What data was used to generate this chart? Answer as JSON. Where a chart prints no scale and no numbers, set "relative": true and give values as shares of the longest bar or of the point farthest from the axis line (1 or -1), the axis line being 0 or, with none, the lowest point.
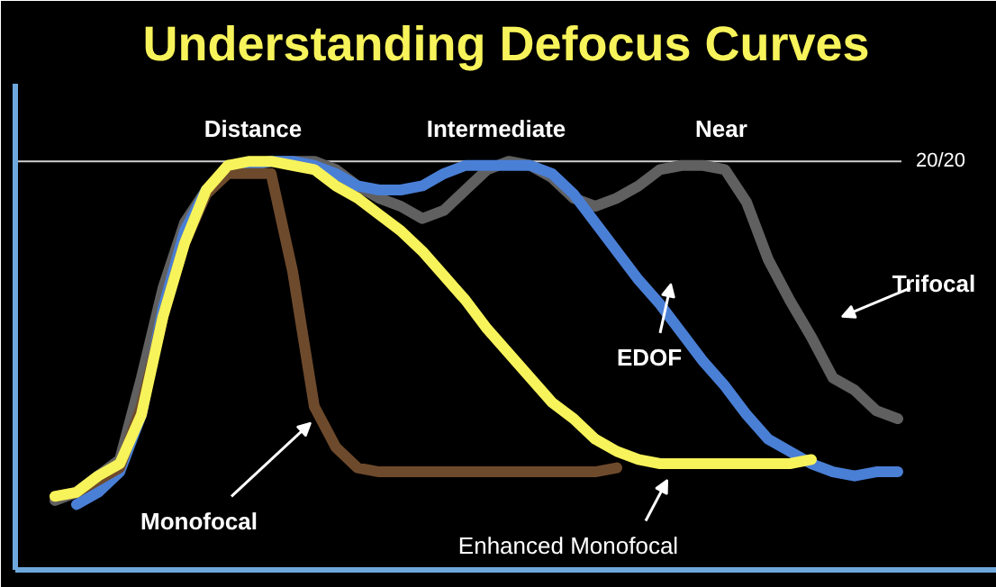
{
  "chart_data": {
    "type": "line",
    "title": "Understanding Defocus Curves",
    "relative": true,
    "legend": false,
    "grid": false,
    "marker": "none",
    "line_style": "solid",
    "categories": [
      null,
      null,
      null,
      null,
      null,
      null,
      null,
      null,
      null,
      null,
      null,
      null,
      null,
      null,
      null,
      null,
      null,
      null,
      null,
      null,
      null,
      null,
      null,
      null,
      null,
      null,
      null,
      null,
      null,
      null,
      null,
      null,
      null,
      null,
      null,
      null,
      null,
      null,
      null,
      null
    ],
    "annotations": [
      "Distance",
      "Intermediate",
      "Near",
      "20/20"
    ],
    "ref_lines": [
      {
        "axis": "y",
        "value": 1,
        "color": "#d0d0d0"
      }
    ],
    "series": [
      {
        "name": "Trifocal",
        "color": "#606060",
        "values": [
          0.17,
          0.19,
          0.23,
          0.27,
          0.47,
          0.69,
          0.85,
          0.93,
          0.97,
          0.99,
          1,
          1,
          1,
          0.98,
          0.94,
          0.91,
          0.89,
          0.86,
          0.88,
          0.93,
          0.98,
          1,
          0.99,
          0.96,
          0.91,
          0.89,
          0.91,
          0.94,
          0.98,
          0.99,
          0.99,
          0.98,
          0.9,
          0.76,
          0.66,
          0.57,
          0.47,
          0.44,
          0.39,
          0.37
        ]
      },
      {
        "name": "EDOF",
        "color": "#4a7fd6",
        "values": [
          null,
          0.16,
          0.19,
          0.24,
          0.38,
          0.64,
          0.83,
          0.93,
          0.98,
          0.99,
          1,
          1,
          0.99,
          0.97,
          0.94,
          0.93,
          0.93,
          0.94,
          0.97,
          0.99,
          0.99,
          0.99,
          0.99,
          0.97,
          0.92,
          0.85,
          0.78,
          0.71,
          0.65,
          0.58,
          0.51,
          0.45,
          0.38,
          0.32,
          0.29,
          0.26,
          0.24,
          0.23,
          0.24,
          0.24
        ]
      },
      {
        "name": "Monofocal",
        "color": "#6e4a2c",
        "values": [
          0.18,
          0.19,
          0.22,
          0.25,
          0.4,
          0.62,
          0.8,
          0.92,
          0.97,
          0.97,
          0.97,
          0.73,
          0.4,
          0.3,
          0.25,
          0.24,
          0.24,
          0.24,
          0.24,
          0.24,
          0.24,
          0.24,
          0.24,
          0.24,
          0.24,
          0.24,
          0.25,
          null,
          null,
          null,
          null,
          null,
          null,
          null,
          null,
          null,
          null,
          null,
          null,
          null
        ]
      },
      {
        "name": "Enhanced Monofocal",
        "color": "#f7f35a",
        "values": [
          0.18,
          0.19,
          0.23,
          0.26,
          0.38,
          0.62,
          0.8,
          0.93,
          0.99,
          1,
          1,
          0.99,
          0.98,
          0.94,
          0.91,
          0.87,
          0.83,
          0.78,
          0.72,
          0.66,
          0.59,
          0.53,
          0.47,
          0.41,
          0.37,
          0.32,
          0.29,
          0.27,
          0.26,
          0.26,
          0.26,
          0.26,
          0.26,
          0.26,
          0.26,
          0.27,
          null,
          null,
          null,
          null
        ]
      }
    ]
  }
}
